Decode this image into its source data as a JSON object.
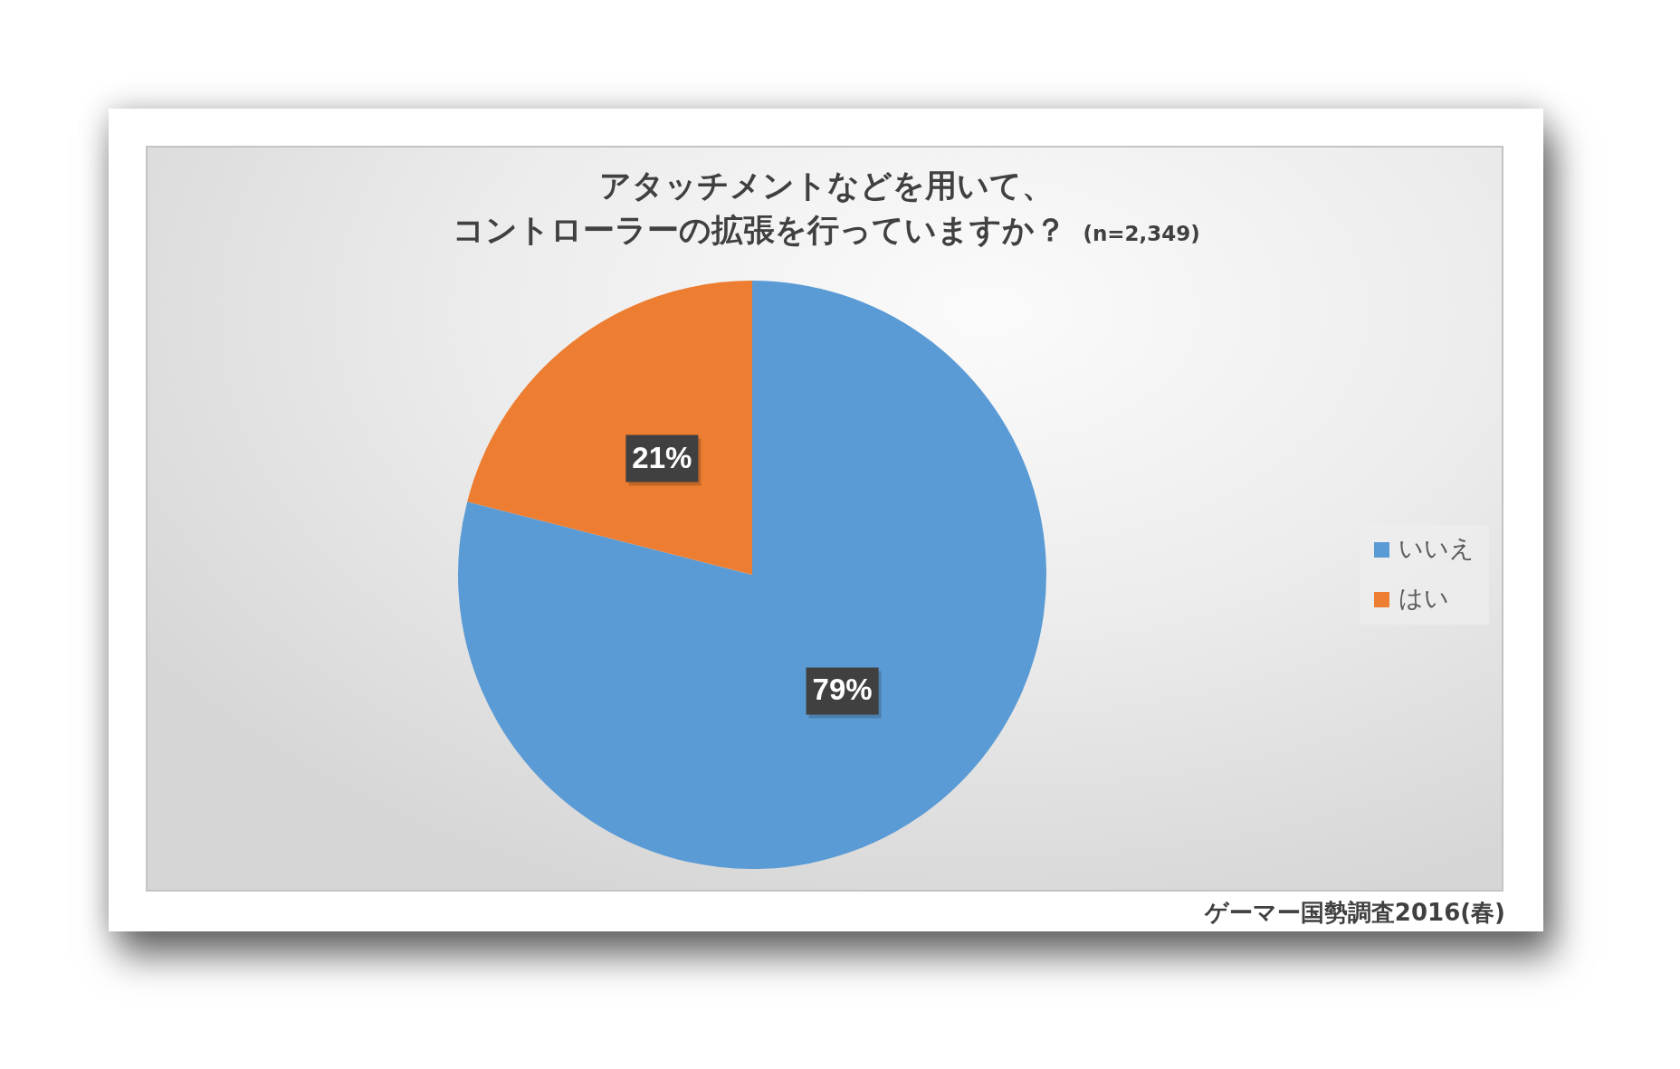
{
  "chart_data": {
    "type": "pie",
    "title": "アタッチメントなどを用いて、コントローラーの拡張を行っていますか？",
    "subtitle": "(n=2,349)",
    "categories": [
      "いいえ",
      "はい"
    ],
    "values": [
      79,
      21
    ],
    "colors": [
      "#5b9bd5",
      "#ed7d31"
    ],
    "value_labels": [
      "79%",
      "21%"
    ],
    "legend": "right",
    "annotations": [
      "ゲーマー国勢調査2016(春)"
    ]
  }
}
